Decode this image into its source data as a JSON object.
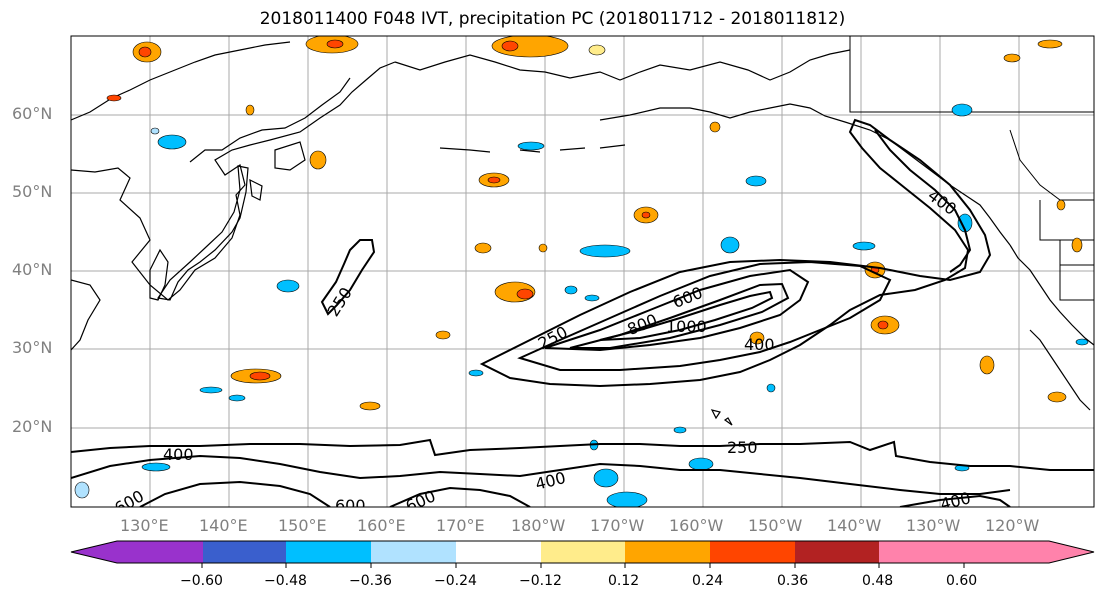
{
  "title": "2018011400 F048 IVT, precipitation PC (2018011712 - 2018011812)",
  "map": {
    "lat_labels": [
      "60°N",
      "50°N",
      "40°N",
      "30°N",
      "20°N"
    ],
    "lon_labels": [
      "130°E",
      "140°E",
      "150°E",
      "160°E",
      "170°E",
      "180°W",
      "170°W",
      "160°W",
      "150°W",
      "140°W",
      "130°W",
      "120°W"
    ],
    "contour_labels": [
      {
        "text": "250",
        "id": "c250-japan"
      },
      {
        "text": "250",
        "id": "c250-jet-west"
      },
      {
        "text": "600",
        "id": "c600-jet"
      },
      {
        "text": "800",
        "id": "c800-jet"
      },
      {
        "text": "1000",
        "id": "c1000-jet"
      },
      {
        "text": "400",
        "id": "c400-jet"
      },
      {
        "text": "400",
        "id": "c400-coast"
      },
      {
        "text": "400",
        "id": "c400-sw"
      },
      {
        "text": "250",
        "id": "c250-south"
      },
      {
        "text": "400",
        "id": "c400-south"
      },
      {
        "text": "600",
        "id": "c600-south-a"
      },
      {
        "text": "600",
        "id": "c600-south-b"
      },
      {
        "text": "600",
        "id": "c600-south-c"
      },
      {
        "text": "400",
        "id": "c400-se"
      }
    ]
  },
  "colorbar": {
    "ticks": [
      "−0.60",
      "−0.48",
      "−0.36",
      "−0.24",
      "−0.12",
      "0.12",
      "0.24",
      "0.36",
      "0.48",
      "0.60"
    ],
    "colors": [
      "#9932CC",
      "#00008B",
      "#3A5FCD",
      "#00BFFF",
      "#B0E2FF",
      "#FFFFFF",
      "#FFEC8B",
      "#FFA500",
      "#FF4500",
      "#B22222",
      "#FF82AB"
    ]
  }
}
